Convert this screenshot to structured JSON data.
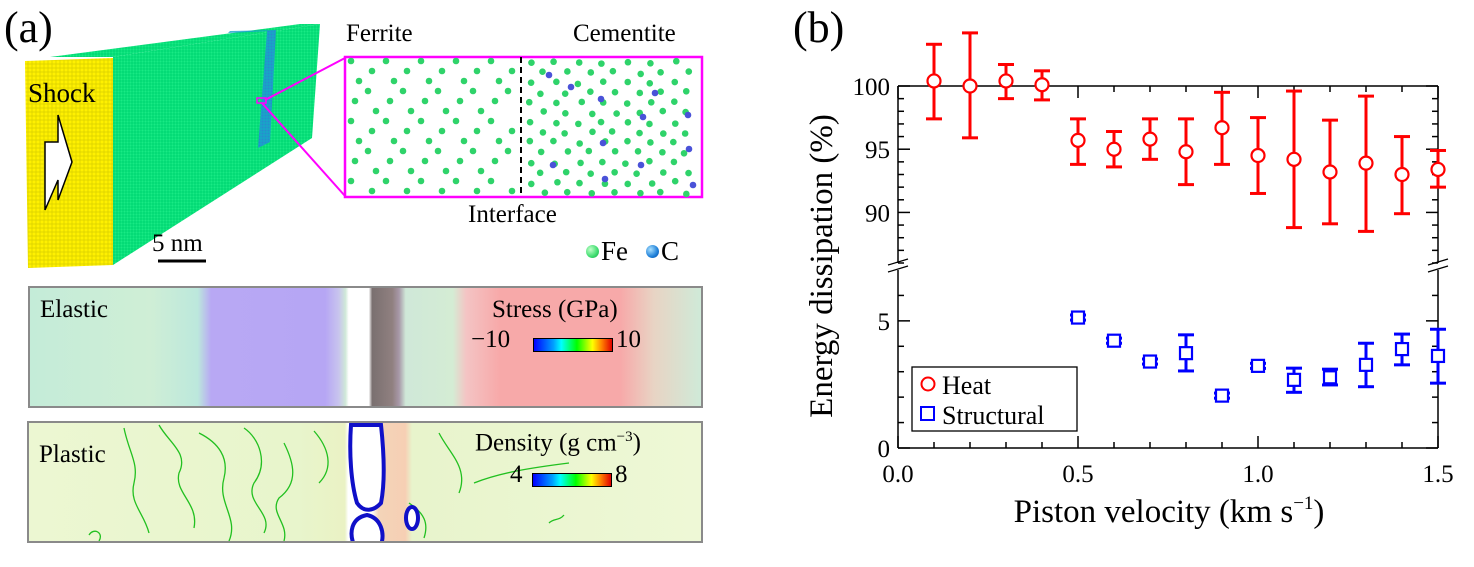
{
  "figure": {
    "panel_a": {
      "label": "(a)",
      "box_3d": {
        "shock_label": "Shock",
        "scale_bar_label": "5 nm",
        "colors": {
          "piston_face": "#f2e600",
          "ferrite": "#00e07a",
          "interface_band": "#1f8fd0",
          "highlight": "#ff00ff"
        }
      },
      "inset": {
        "left_label": "Ferrite",
        "right_label": "Cementite",
        "interface_label": "Interface",
        "legend": [
          {
            "label": "Fe",
            "color": "#3ddc6e"
          },
          {
            "label": "C",
            "color": "#1e7fd8"
          }
        ],
        "colors": {
          "fe_atom": "#2fd36a",
          "c_atom": "#4a52d8",
          "frame": "#ff00ff"
        }
      },
      "elastic_panel": {
        "label": "Elastic",
        "colorbar_title": "Stress (GPa)",
        "colorbar_min": "−10",
        "colorbar_max": "10"
      },
      "plastic_panel": {
        "label": "Plastic",
        "colorbar_title_main": "Density (g cm",
        "colorbar_title_sup": "−3",
        "colorbar_title_end": ")",
        "colorbar_min": "4",
        "colorbar_max": "8"
      }
    },
    "panel_b": {
      "label": "(b)"
    }
  },
  "chart_data": {
    "type": "scatter",
    "title": "",
    "xlabel": "Piston velocity (km s⁻¹)",
    "xlabel_main": "Piston velocity (km s",
    "xlabel_sup": "−1",
    "xlabel_end": ")",
    "ylabel": "Energy dissipation (%)",
    "xlim": [
      0.0,
      1.5
    ],
    "xticks": [
      0.0,
      0.5,
      1.0,
      1.5
    ],
    "xtick_labels": [
      "0.0",
      "0.5",
      "1.0",
      "1.5"
    ],
    "x_minor_step": 0.1,
    "broken_y_axis": true,
    "ylim_upper": [
      86,
      100
    ],
    "yticks_upper": [
      90,
      95,
      100
    ],
    "ytick_labels_upper": [
      "90",
      "95",
      "100"
    ],
    "ylim_lower": [
      0,
      7
    ],
    "yticks_lower": [
      0,
      5
    ],
    "ytick_labels_lower": [
      "0",
      "5"
    ],
    "y_minor_step": 1,
    "grid": false,
    "legend_position": "bottom-left",
    "series": [
      {
        "name": "Heat",
        "marker": "circle-open",
        "color": "#ff0000",
        "axis": "upper",
        "x": [
          0.1,
          0.2,
          0.3,
          0.4,
          0.5,
          0.6,
          0.7,
          0.8,
          0.9,
          1.0,
          1.1,
          1.2,
          1.3,
          1.4,
          1.5
        ],
        "y": [
          100.4,
          100.0,
          100.4,
          100.1,
          95.7,
          95.0,
          95.8,
          94.8,
          96.7,
          94.5,
          94.2,
          93.2,
          93.9,
          93.0,
          93.4
        ],
        "y_upper_err": [
          103.3,
          104.2,
          101.7,
          101.2,
          97.4,
          96.4,
          97.4,
          97.4,
          99.5,
          97.5,
          99.6,
          97.3,
          99.2,
          96.0,
          94.9
        ],
        "y_lower_err": [
          97.4,
          95.9,
          99.0,
          98.9,
          93.8,
          93.6,
          94.2,
          92.2,
          93.8,
          91.5,
          88.8,
          89.1,
          88.5,
          89.9,
          92.0
        ]
      },
      {
        "name": "Structural",
        "marker": "square-open",
        "color": "#0000ff",
        "axis": "lower",
        "x": [
          0.5,
          0.6,
          0.7,
          0.8,
          0.9,
          1.0,
          1.1,
          1.2,
          1.3,
          1.4,
          1.5
        ],
        "y": [
          5.13,
          4.22,
          3.4,
          3.73,
          2.06,
          3.23,
          2.68,
          2.78,
          3.27,
          3.89,
          3.62
        ],
        "y_upper_err": [
          5.23,
          4.32,
          3.5,
          4.45,
          2.16,
          3.33,
          3.14,
          3.1,
          4.12,
          4.48,
          4.67
        ],
        "y_lower_err": [
          5.03,
          4.12,
          3.3,
          3.03,
          1.96,
          3.13,
          2.19,
          2.48,
          2.41,
          3.27,
          2.55
        ]
      }
    ]
  }
}
